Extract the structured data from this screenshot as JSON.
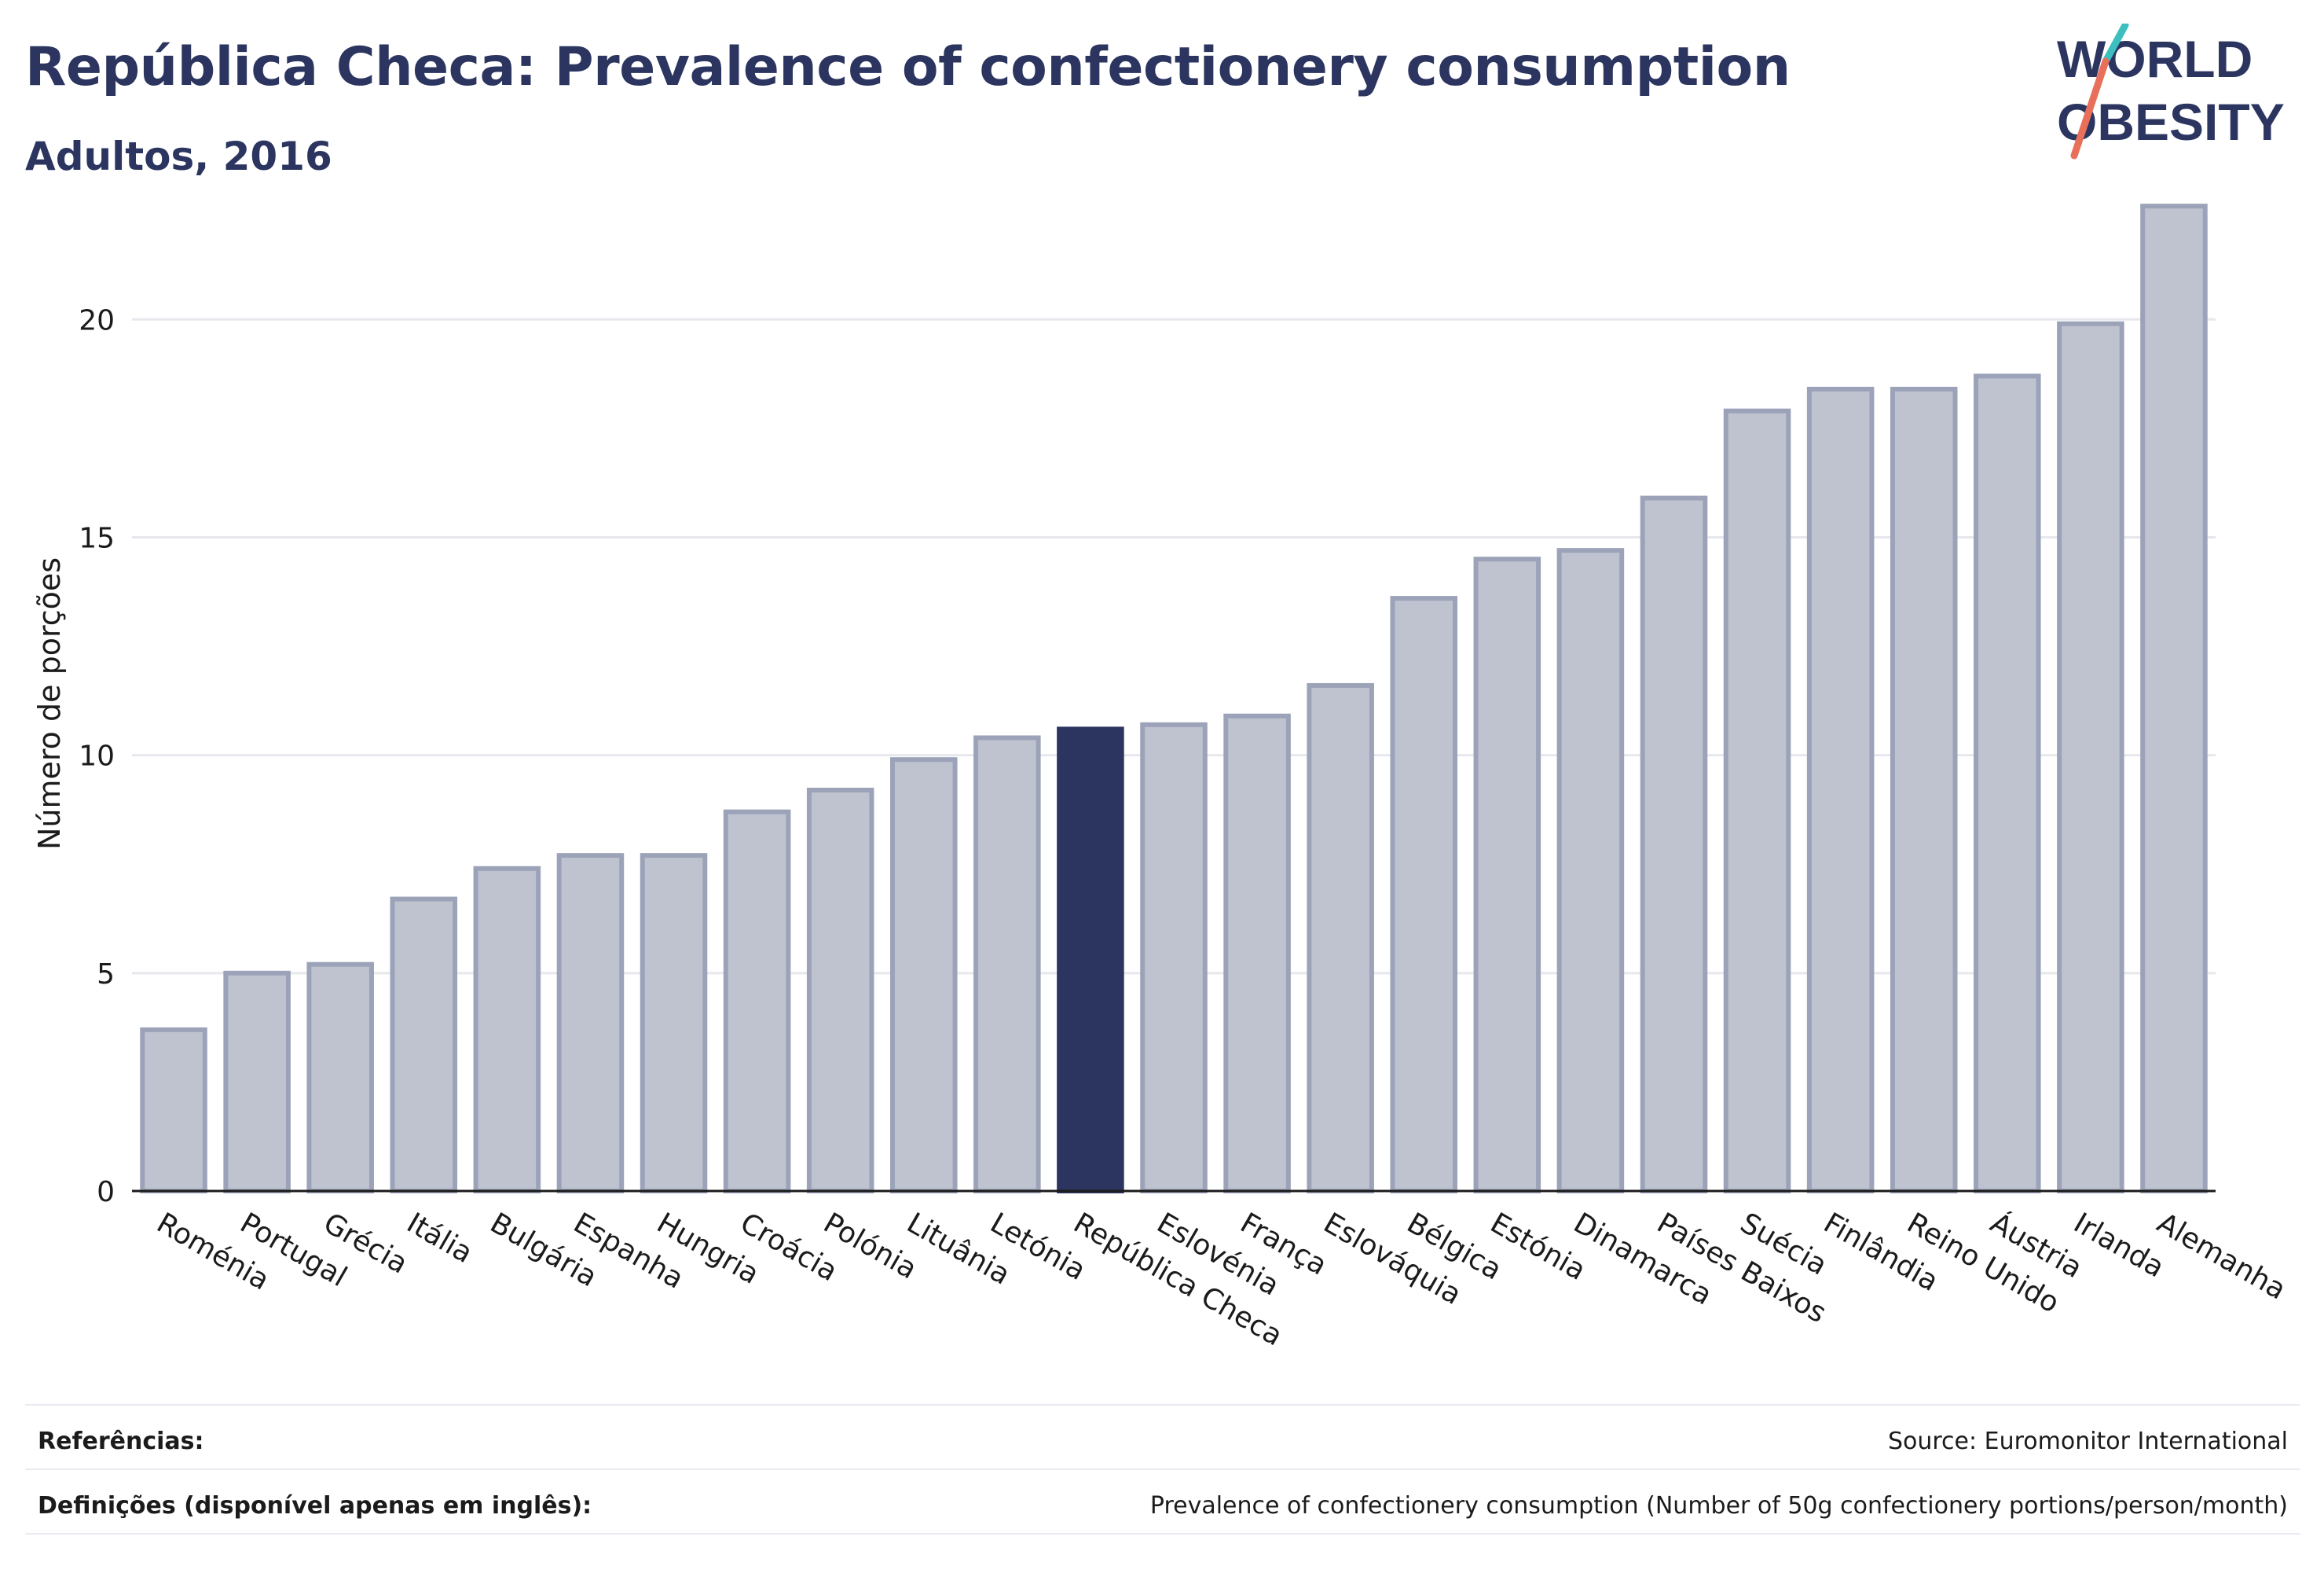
{
  "header": {
    "title": "República Checa: Prevalence of confectionery consumption",
    "subtitle": "Adultos, 2016"
  },
  "logo": {
    "line1": "WORLD",
    "line2": "OBESITY",
    "colors": {
      "text": "#2b3560",
      "slash_top": "#3dbfbf",
      "slash_bottom": "#e8705a"
    }
  },
  "colors": {
    "bar": "#bfc3d0",
    "bar_border": "#9ca3b9",
    "highlight": "#2b3560",
    "axis": "#1b1b1b",
    "grid": "#e6e8ee"
  },
  "chart_data": {
    "type": "bar",
    "title": "República Checa: Prevalence of confectionery consumption",
    "subtitle": "Adultos, 2016",
    "xlabel": "",
    "ylabel": "Número de porções",
    "ylim": [
      0,
      23
    ],
    "yticks": [
      0,
      5,
      10,
      15,
      20
    ],
    "grid": true,
    "highlight_category": "República Checa",
    "categories": [
      "Roménia",
      "Portugal",
      "Grécia",
      "Itália",
      "Bulgária",
      "Espanha",
      "Hungria",
      "Croácia",
      "Polónia",
      "Lituânia",
      "Letónia",
      "República Checa",
      "Eslovénia",
      "França",
      "Eslováquia",
      "Bélgica",
      "Estónia",
      "Dinamarca",
      "Países Baixos",
      "Suécia",
      "Finlândia",
      "Reino Unido",
      "Áustria",
      "Irlanda",
      "Alemanha"
    ],
    "values": [
      3.7,
      5.0,
      5.2,
      6.7,
      7.4,
      7.7,
      7.7,
      8.7,
      9.2,
      9.9,
      10.4,
      10.6,
      10.7,
      10.9,
      11.6,
      13.6,
      14.5,
      14.7,
      15.9,
      17.9,
      18.4,
      18.4,
      18.7,
      19.9,
      22.6
    ]
  },
  "footer": {
    "references_label": "Referências:",
    "references_value": "Source: Euromonitor International",
    "definitions_label": "Definições (disponível apenas em inglês):",
    "definitions_value": "Prevalence of confectionery consumption (Number of 50g confectionery portions/person/month)"
  }
}
